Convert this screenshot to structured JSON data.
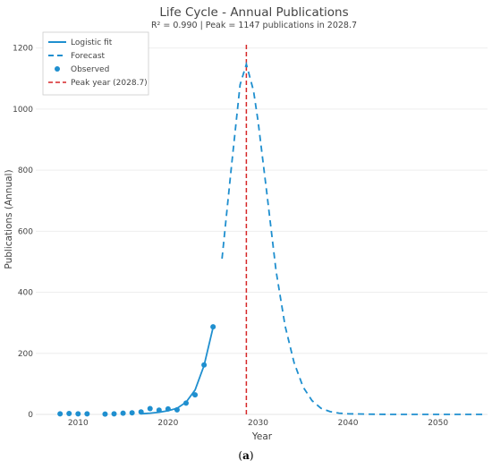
{
  "chart_data": {
    "type": "line",
    "title": "Life Cycle - Annual Publications",
    "subtitle": "R² = 0.990 | Peak = 1147 publications in 2028.7",
    "xlabel": "Year",
    "ylabel": "Publications (Annual)",
    "xlim": [
      2005.3,
      2055.5
    ],
    "ylim": [
      0,
      1240
    ],
    "x_ticks": [
      2010,
      2020,
      2030,
      2040,
      2050
    ],
    "y_ticks": [
      0,
      200,
      400,
      600,
      800,
      1000,
      1200
    ],
    "grid": "horizontal",
    "legend_placement": "top-left",
    "series": [
      {
        "name": "Logistic fit",
        "style": "solid",
        "color": "#1f8fcf",
        "x": [
          2017,
          2018,
          2019,
          2020,
          2021,
          2022,
          2023,
          2024,
          2025
        ],
        "y": [
          2,
          4,
          7,
          12,
          20,
          40,
          80,
          160,
          285
        ]
      },
      {
        "name": "Forecast",
        "style": "dashed",
        "color": "#1f8fcf",
        "x": [
          2026,
          2027,
          2028,
          2028.7,
          2029.5,
          2030,
          2031,
          2032,
          2033,
          2034,
          2035,
          2036,
          2037,
          2038,
          2039,
          2040,
          2042,
          2045,
          2050,
          2055
        ],
        "y": [
          510,
          800,
          1080,
          1147,
          1060,
          960,
          720,
          470,
          290,
          170,
          90,
          45,
          20,
          9,
          4,
          2,
          1,
          0,
          0,
          0
        ]
      },
      {
        "name": "Observed",
        "style": "markers",
        "color": "#1f8fcf",
        "x": [
          2008,
          2009,
          2010,
          2011,
          2013,
          2014,
          2015,
          2016,
          2017,
          2018,
          2019,
          2020,
          2021,
          2022,
          2023,
          2024,
          2025
        ],
        "y": [
          2,
          3,
          2,
          2,
          1,
          2,
          4,
          5,
          8,
          19,
          14,
          18,
          15,
          37,
          64,
          162,
          287
        ]
      },
      {
        "name": "Peak year (2028.7)",
        "style": "vline",
        "color": "#d62728",
        "x": 2028.7
      }
    ]
  },
  "caption": {
    "open": "(",
    "label": "a",
    "close": ")"
  }
}
